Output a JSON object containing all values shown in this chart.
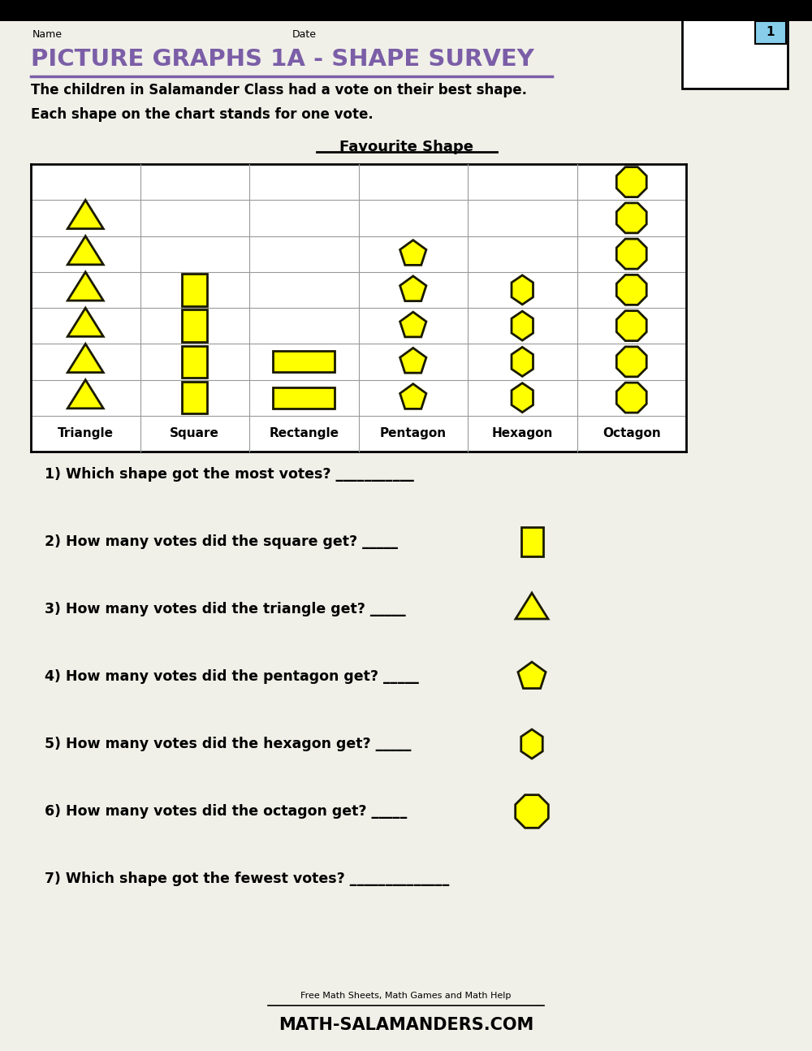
{
  "bg_color": "#f0f0e8",
  "page_bg": "#f0f0e8",
  "title_text": "PICTURE GRAPHS 1A - SHAPE SURVEY",
  "title_color": "#7b5ea7",
  "desc_line1": "The children in Salamander Class had a vote on their best shape.",
  "desc_line2": "Each shape on the chart stands for one vote.",
  "chart_title": "Favourite Shape",
  "shape_labels": [
    "Triangle",
    "Square",
    "Rectangle",
    "Pentagon",
    "Hexagon",
    "Octagon"
  ],
  "shape_counts": [
    6,
    4,
    2,
    5,
    4,
    7
  ],
  "yellow_fill": "#ffff00",
  "yellow_edge": "#1a1a00",
  "questions": [
    "1) Which shape got the most votes? ___________",
    "2) How many votes did the square get? _____",
    "3) How many votes did the triangle get? _____",
    "4) How many votes did the pentagon get? _____",
    "5) How many votes did the hexagon get? _____",
    "6) How many votes did the octagon get? _____",
    "7) Which shape got the fewest votes? ______________"
  ],
  "question_shapes": [
    "none",
    "square",
    "triangle",
    "pentagon",
    "hexagon",
    "octagon",
    "none"
  ],
  "name_label": "Name",
  "date_label": "Date",
  "footer_small": "Free Math Sheets, Math Games and Math Help",
  "footer_large": "MATH-SALAMANDERS.COM"
}
